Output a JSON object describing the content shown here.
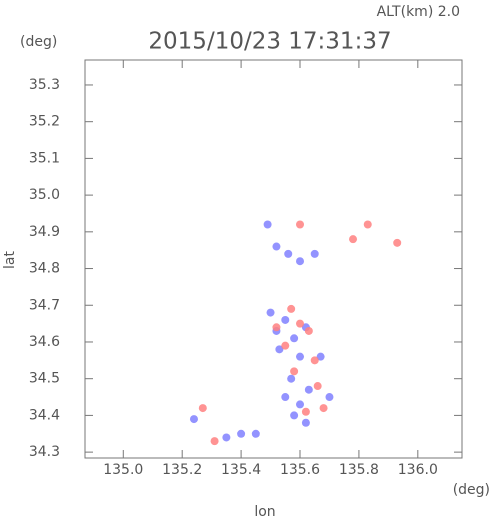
{
  "chart_data": {
    "type": "scatter",
    "title": "2015/10/23 17:31:37",
    "subtitle": "ALT(km) 2.0",
    "y_unit": "(deg)",
    "x_unit": "(deg)",
    "xlabel": "lon",
    "ylabel": "lat",
    "xlim": [
      134.87,
      136.15
    ],
    "ylim": [
      34.284,
      35.368
    ],
    "xticks": [
      {
        "value": 135,
        "label": "135.0"
      },
      135.2,
      135.4,
      135.6,
      135.8,
      {
        "value": 136,
        "label": "136.0"
      }
    ],
    "yticks": [
      34.3,
      34.4,
      34.5,
      34.6,
      34.7,
      34.8,
      34.9,
      {
        "value": 35,
        "label": "35.0"
      },
      35.1,
      35.2,
      35.3
    ],
    "series": [
      {
        "color": "#8080ff",
        "x": [
          135.49,
          135.52,
          135.56,
          135.6,
          135.65,
          135.5,
          135.52,
          135.55,
          135.58,
          135.62,
          135.53,
          135.6,
          135.57,
          135.63,
          135.55,
          135.6,
          135.58,
          135.62,
          135.24,
          135.45,
          135.4,
          135.35,
          135.67,
          135.7
        ],
        "values": [
          34.92,
          34.86,
          34.84,
          34.82,
          34.84,
          34.68,
          34.63,
          34.66,
          34.61,
          34.64,
          34.58,
          34.56,
          34.5,
          34.47,
          34.45,
          34.43,
          34.4,
          34.38,
          34.39,
          34.35,
          34.35,
          34.34,
          34.56,
          34.45
        ]
      },
      {
        "color": "#ff8080",
        "x": [
          135.83,
          135.78,
          135.93,
          135.57,
          135.52,
          135.6,
          135.63,
          135.55,
          135.65,
          135.58,
          135.66,
          135.68,
          135.62,
          135.27,
          135.31,
          135.6
        ],
        "values": [
          34.92,
          34.88,
          34.87,
          34.69,
          34.64,
          34.65,
          34.63,
          34.59,
          34.55,
          34.52,
          34.48,
          34.42,
          34.41,
          34.42,
          34.33,
          34.92
        ]
      }
    ]
  }
}
